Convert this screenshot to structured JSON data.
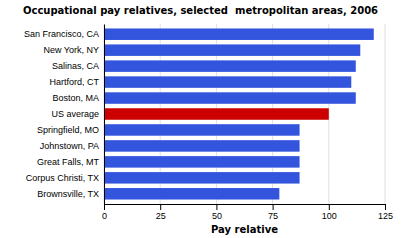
{
  "chart_data": {
    "type": "bar",
    "orientation": "horizontal",
    "title": "Occupational pay relatives, selected  metropolitan areas, 2006",
    "categories": [
      "Brownsville, TX",
      "Corpus Christi, TX",
      "Great Falls, MT",
      "Johnstown, PA",
      "Springfield, MO",
      "US average",
      "Boston, MA",
      "Hartford, CT",
      "Salinas, CA",
      "New York, NY",
      "San Francisco, CA"
    ],
    "values": [
      78,
      87,
      87,
      87,
      87,
      100,
      112,
      110,
      112,
      114,
      120
    ],
    "colors": [
      "#3355dd",
      "#3355dd",
      "#3355dd",
      "#3355dd",
      "#3355dd",
      "#cc0000",
      "#3355dd",
      "#3355dd",
      "#3355dd",
      "#3355dd",
      "#3355dd"
    ],
    "xlabel": "Pay relative",
    "xlim": [
      0,
      125
    ],
    "xticks": [
      0,
      25,
      50,
      75,
      100,
      125
    ],
    "grid": true
  }
}
